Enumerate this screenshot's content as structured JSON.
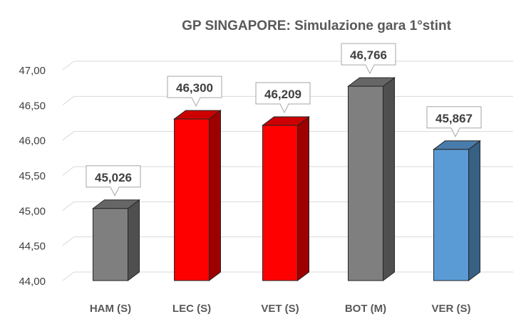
{
  "chart_data": {
    "type": "bar",
    "title": "GP SINGAPORE: Simulazione gara 1°stint",
    "xlabel": "",
    "ylabel": "",
    "categories": [
      "HAM (S)",
      "LEC (S)",
      "VET (S)",
      "BOT (M)",
      "VER (S)"
    ],
    "values": [
      45.026,
      46.3,
      46.209,
      46.766,
      45.867
    ],
    "data_labels": [
      "45,026",
      "46,300",
      "46,209",
      "46,766",
      "45,867"
    ],
    "yticks": [
      "44,00",
      "44,50",
      "45,00",
      "45,50",
      "46,00",
      "46,50",
      "47,00"
    ],
    "ylim": [
      44.0,
      47.0
    ],
    "grid": true,
    "legend": "none",
    "bar_colors": [
      "#7f7f7f",
      "#ff0000",
      "#ff0000",
      "#7f7f7f",
      "#5b9bd5"
    ]
  }
}
